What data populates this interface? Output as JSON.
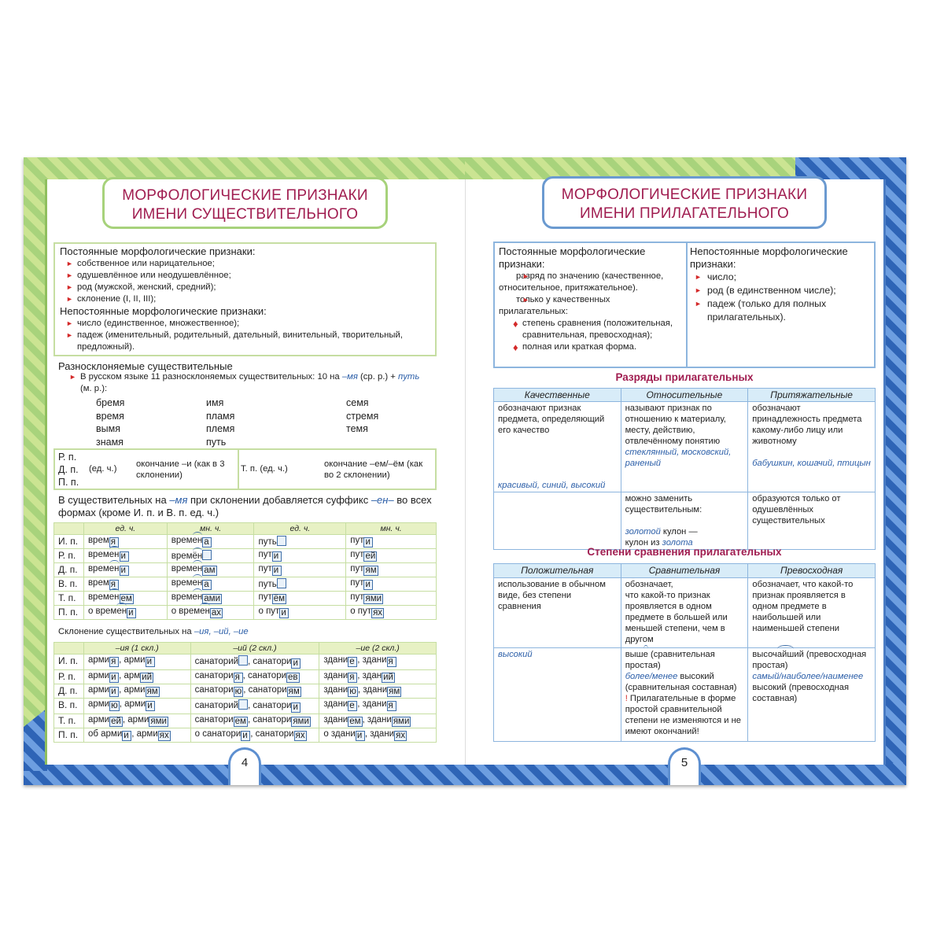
{
  "colors": {
    "title": "#a01d50",
    "green_frame": "#a8d37c",
    "blue_frame": "#2e64b6",
    "bullet": "#d42a2a",
    "example": "#2b5ea8"
  },
  "left": {
    "title_line1": "МОРФОЛОГИЧЕСКИЕ ПРИЗНАКИ",
    "title_line2": "ИМЕНИ СУЩЕСТВИТЕЛЬНОГО",
    "const_heading": "Постоянные морфологические признаки:",
    "const_items": [
      "собственное или нарицательное;",
      "одушевлённое или неодушевлённое;",
      "род (мужской, женский, средний);",
      "склонение (I, II, III);"
    ],
    "var_heading": "Непостоянные морфологические признаки:",
    "var_items": [
      "число (единственное, множественное);",
      "падеж (именительный, родительный, дательный, винительный, творительный, предложный)."
    ],
    "raznoskl_heading": "Разносклоняемые существительные",
    "raznoskl_text": "В русском языке 11 разносклоняемых существительных: 10 на *–мя* (ср. р.) + *путь* (м. р.):",
    "words": [
      [
        "бремя",
        "время",
        "вымя",
        "знамя"
      ],
      [
        "имя",
        "пламя",
        "племя",
        "путь"
      ],
      [
        "семя",
        "стремя",
        "темя"
      ]
    ],
    "cases_box": {
      "cases": "Р. п.\nД. п.\nП. п.",
      "number": "(ед. ч.)",
      "ending1": "окончание –и (как в 3 склонении)",
      "case2": "Т. п. (ед. ч.)",
      "ending2": "окончание –ем/–ём (как во 2 склонении)"
    },
    "suffix_note": "В существительных на *–мя* при склонении добавляется суффикс *–ен–* во всех формах (кроме И. п. и В. п. ед. ч.)",
    "table1": {
      "headers": [
        "",
        "ед. ч.",
        "мн. ч.",
        "ед. ч.",
        "мн. ч."
      ],
      "rows": [
        [
          "И. п.",
          "врем[я]",
          "врем{ен}[а]",
          "путь[]",
          "пут[и]"
        ],
        [
          "Р. п.",
          "врем{ен}[и]",
          "врем{ён}[]",
          "пут[и]",
          "пут[ей]"
        ],
        [
          "Д. п.",
          "врем{ен}[и]",
          "врем{ен}[ам]",
          "пут[и]",
          "пут[ям]"
        ],
        [
          "В. п.",
          "врем[я]",
          "врем{ен}[а]",
          "путь[]",
          "пут[и]"
        ],
        [
          "Т. п.",
          "врем{ен}[ем]",
          "врем{ен}[ами]",
          "пут[ём]",
          "пут[ями]"
        ],
        [
          "П. п.",
          "о врем{ен}[и]",
          "о врем{ен}[ах]",
          "о пут[и]",
          "о пут[ях]"
        ]
      ]
    },
    "table2_caption": "Склонение существительных на *–ия, –ий, –ие*",
    "table2": {
      "headers": [
        "",
        "–ия (1 скл.)",
        "–ий (2 скл.)",
        "–ие (2 скл.)"
      ],
      "rows": [
        [
          "И. п.",
          "арми[я], арми[и]",
          "санаторий[], санатори[и]",
          "здани[е], здани[я]"
        ],
        [
          "Р. п.",
          "арми[и], арм[ий]",
          "санатори[я], санатори[ев]",
          "здани[я], здан[ий]"
        ],
        [
          "Д. п.",
          "арми[и], арми[ям]",
          "санатори[ю], санатори[ям]",
          "здани[ю], здани[ям]"
        ],
        [
          "В. п.",
          "арми[ю], арми[и]",
          "санаторий[], санатори[и]",
          "здани[е], здани[я]"
        ],
        [
          "Т. п.",
          "арми[ей], арми[ями]",
          "санатори[ем], санатори[ями]",
          "здани[ем], здани[ями]"
        ],
        [
          "П. п.",
          "об арми[и], арми[ях]",
          "о санатори[и], санатори[ях]",
          "о здани[и], здани[ях]"
        ]
      ]
    },
    "page_number": "4"
  },
  "right": {
    "title_line1": "МОРФОЛОГИЧЕСКИЕ ПРИЗНАКИ",
    "title_line2": "ИМЕНИ ПРИЛАГАТЕЛЬНОГО",
    "const_heading": "Постоянные морфологические признаки:",
    "const_items": [
      "разряд по значению (качественное, относительное, притяжательное).",
      "только у качественных прилагательных:"
    ],
    "const_subitems": [
      "степень сравнения (положительная, сравнительная, превосходная);",
      "полная или краткая форма."
    ],
    "var_heading": "Непостоянные морфологические признаки:",
    "var_items": [
      "число;",
      "род (в единственном числе);",
      "падеж (только для полных прилагательных)."
    ],
    "categories_heading": "Разряды прилагательных",
    "table3": {
      "headers": [
        "Качественные",
        "Относительные",
        "Притяжательные"
      ],
      "rows": [
        [
          "обозначают признак предмета, определяющий его качество\n\n\n\n\n*красивый, синий, высокий*",
          "называют признак по отношению к материалу, месту, действию, отвлечённому понятию\n*стеклянный, московский, раненый*",
          "обозначают принадлежность предмета какому-либо лицу или животному\n\n*бабушкин, кошачий, птицын*"
        ],
        [
          "",
          "можно заменить существительным:\n\n*золотой* кулон —\nкулон из *золота*",
          "образуются только от одушевлённых существительных"
        ]
      ]
    },
    "degrees_heading": "Степени сравнения прилагательных",
    "table4": {
      "headers": [
        "Положительная",
        "Сравнительная",
        "Превосходная"
      ],
      "rows": [
        [
          "использование в обычном виде, без степени сравнения",
          "обозначает,\nчто какой-то признак проявляется в одном предмете в большей или меньшей степени, чем в другом",
          "обозначает, что какой-то признак проявляется в одном предмете в наибольшей или наименьшей степени"
        ],
        [
          "*высокий*",
          "выш{е} (сравнительная простая)\n*более/менее* высокий (сравнительная составная)\n!! Прилагательные в форме простой сравнительной степени не изменяются и не имеют окончаний!",
          "высоч{айш}ий (превосходная простая)\n*самый/наиболее/наименее* высокий (превосходная составная)"
        ]
      ]
    },
    "page_number": "5"
  }
}
